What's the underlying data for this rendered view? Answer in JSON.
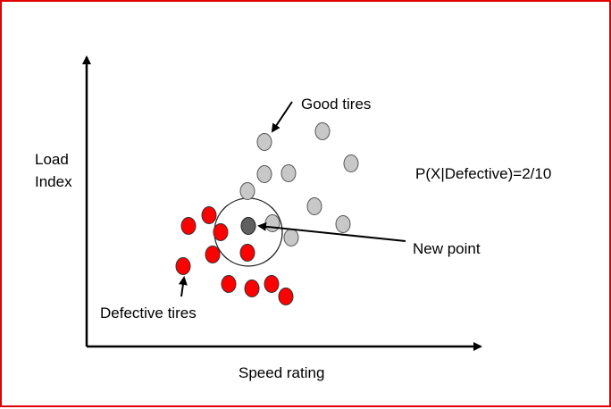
{
  "axes": {
    "x_label": "Speed rating",
    "y_label_line1": "Load",
    "y_label_line2": "Index"
  },
  "labels": {
    "good": "Good tires",
    "defective": "Defective tires",
    "new_point": "New point",
    "probability": "P(X|Defective)=2/10"
  },
  "colors": {
    "frame_border": "#e00000",
    "good_fill": "#c8c8c8",
    "defective_fill": "#ff0000",
    "new_point_fill": "#606060",
    "outline": "#222222"
  },
  "chart_data": {
    "type": "scatter",
    "series": [
      {
        "name": "Good tires",
        "count": 11
      },
      {
        "name": "Defective tires",
        "count": 10
      },
      {
        "name": "New point",
        "count": 1
      }
    ]
  }
}
